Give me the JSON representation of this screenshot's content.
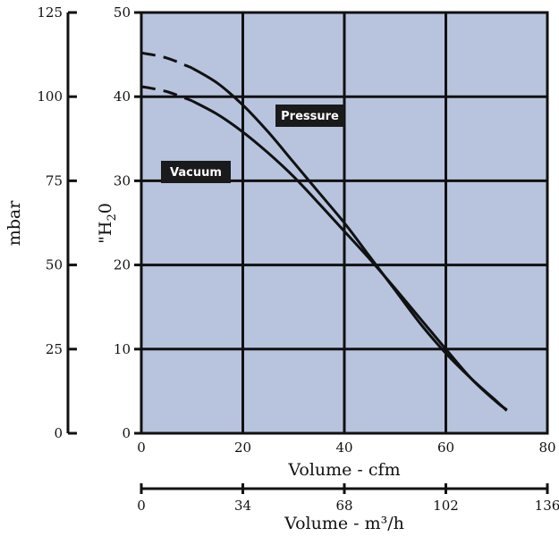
{
  "chart_data": {
    "type": "line",
    "plot_background": "#b8c4de",
    "grid": true,
    "x_axis": {
      "label": "Volume - cfm",
      "range": [
        0,
        80
      ],
      "ticks": [
        "0",
        "20",
        "40",
        "60",
        "80"
      ]
    },
    "x2_axis": {
      "label": "Volume - m³/h",
      "range": [
        0,
        136
      ],
      "ticks": [
        "0",
        "34",
        "68",
        "102",
        "136"
      ]
    },
    "y_axis": {
      "label_main": "\"H",
      "label_sub": "2",
      "label_tail": "0",
      "range": [
        0,
        50
      ],
      "ticks": [
        "0",
        "10",
        "20",
        "30",
        "40",
        "50"
      ]
    },
    "y2_axis": {
      "label": "mbar",
      "range": [
        0,
        125
      ],
      "ticks": [
        "0",
        "25",
        "50",
        "75",
        "100",
        "125"
      ]
    },
    "series": [
      {
        "name": "Pressure",
        "dashed_until_x": 10,
        "points": [
          [
            0,
            45.2
          ],
          [
            5,
            44.6
          ],
          [
            10,
            43.4
          ],
          [
            15,
            41.6
          ],
          [
            20,
            39
          ],
          [
            25,
            35.8
          ],
          [
            30,
            32.2
          ],
          [
            35,
            28.6
          ],
          [
            40,
            25
          ],
          [
            45,
            21
          ],
          [
            50,
            17
          ],
          [
            55,
            13
          ],
          [
            60,
            9.5
          ],
          [
            65,
            6.5
          ],
          [
            70,
            3.8
          ],
          [
            72,
            2.7
          ]
        ]
      },
      {
        "name": "Vacuum",
        "dashed_until_x": 10,
        "points": [
          [
            0,
            41.2
          ],
          [
            5,
            40.6
          ],
          [
            10,
            39.5
          ],
          [
            15,
            37.9
          ],
          [
            20,
            35.8
          ],
          [
            25,
            33.3
          ],
          [
            30,
            30.5
          ],
          [
            35,
            27.3
          ],
          [
            40,
            24
          ],
          [
            45,
            20.7
          ],
          [
            50,
            17.2
          ],
          [
            55,
            13.6
          ],
          [
            60,
            10
          ],
          [
            65,
            6.5
          ],
          [
            70,
            3.7
          ],
          [
            72,
            2.8
          ]
        ]
      }
    ]
  }
}
